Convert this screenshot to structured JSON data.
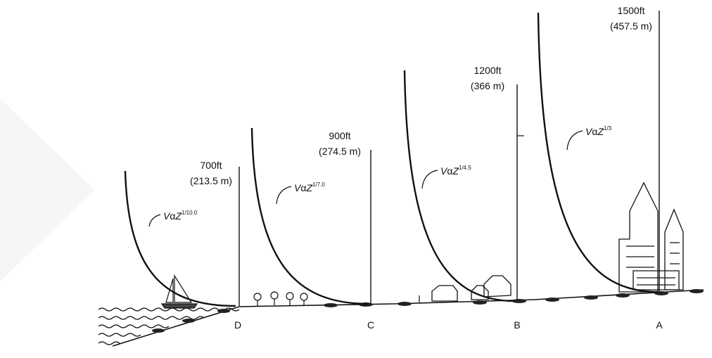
{
  "profiles": [
    {
      "height_ft": "700ft",
      "height_m": "(213.5 m)",
      "formula": {
        "base_v": "V",
        "alpha": "α",
        "base_z": "Z",
        "exponent": "1/10.0"
      },
      "terrain": "D"
    },
    {
      "height_ft": "900ft",
      "height_m": "(274.5 m)",
      "formula": {
        "base_v": "V",
        "alpha": "α",
        "base_z": "Z",
        "exponent": "1/7.0"
      },
      "terrain": "C"
    },
    {
      "height_ft": "1200ft",
      "height_m": "(366 m)",
      "formula": {
        "base_v": "V",
        "alpha": "α",
        "base_z": "Z",
        "exponent": "1/4.5"
      },
      "terrain": "B"
    },
    {
      "height_ft": "1500ft",
      "height_m": "(457.5 m)",
      "formula": {
        "base_v": "V",
        "alpha": "α",
        "base_z": "Z",
        "exponent": "1/3"
      },
      "terrain": "A"
    }
  ]
}
